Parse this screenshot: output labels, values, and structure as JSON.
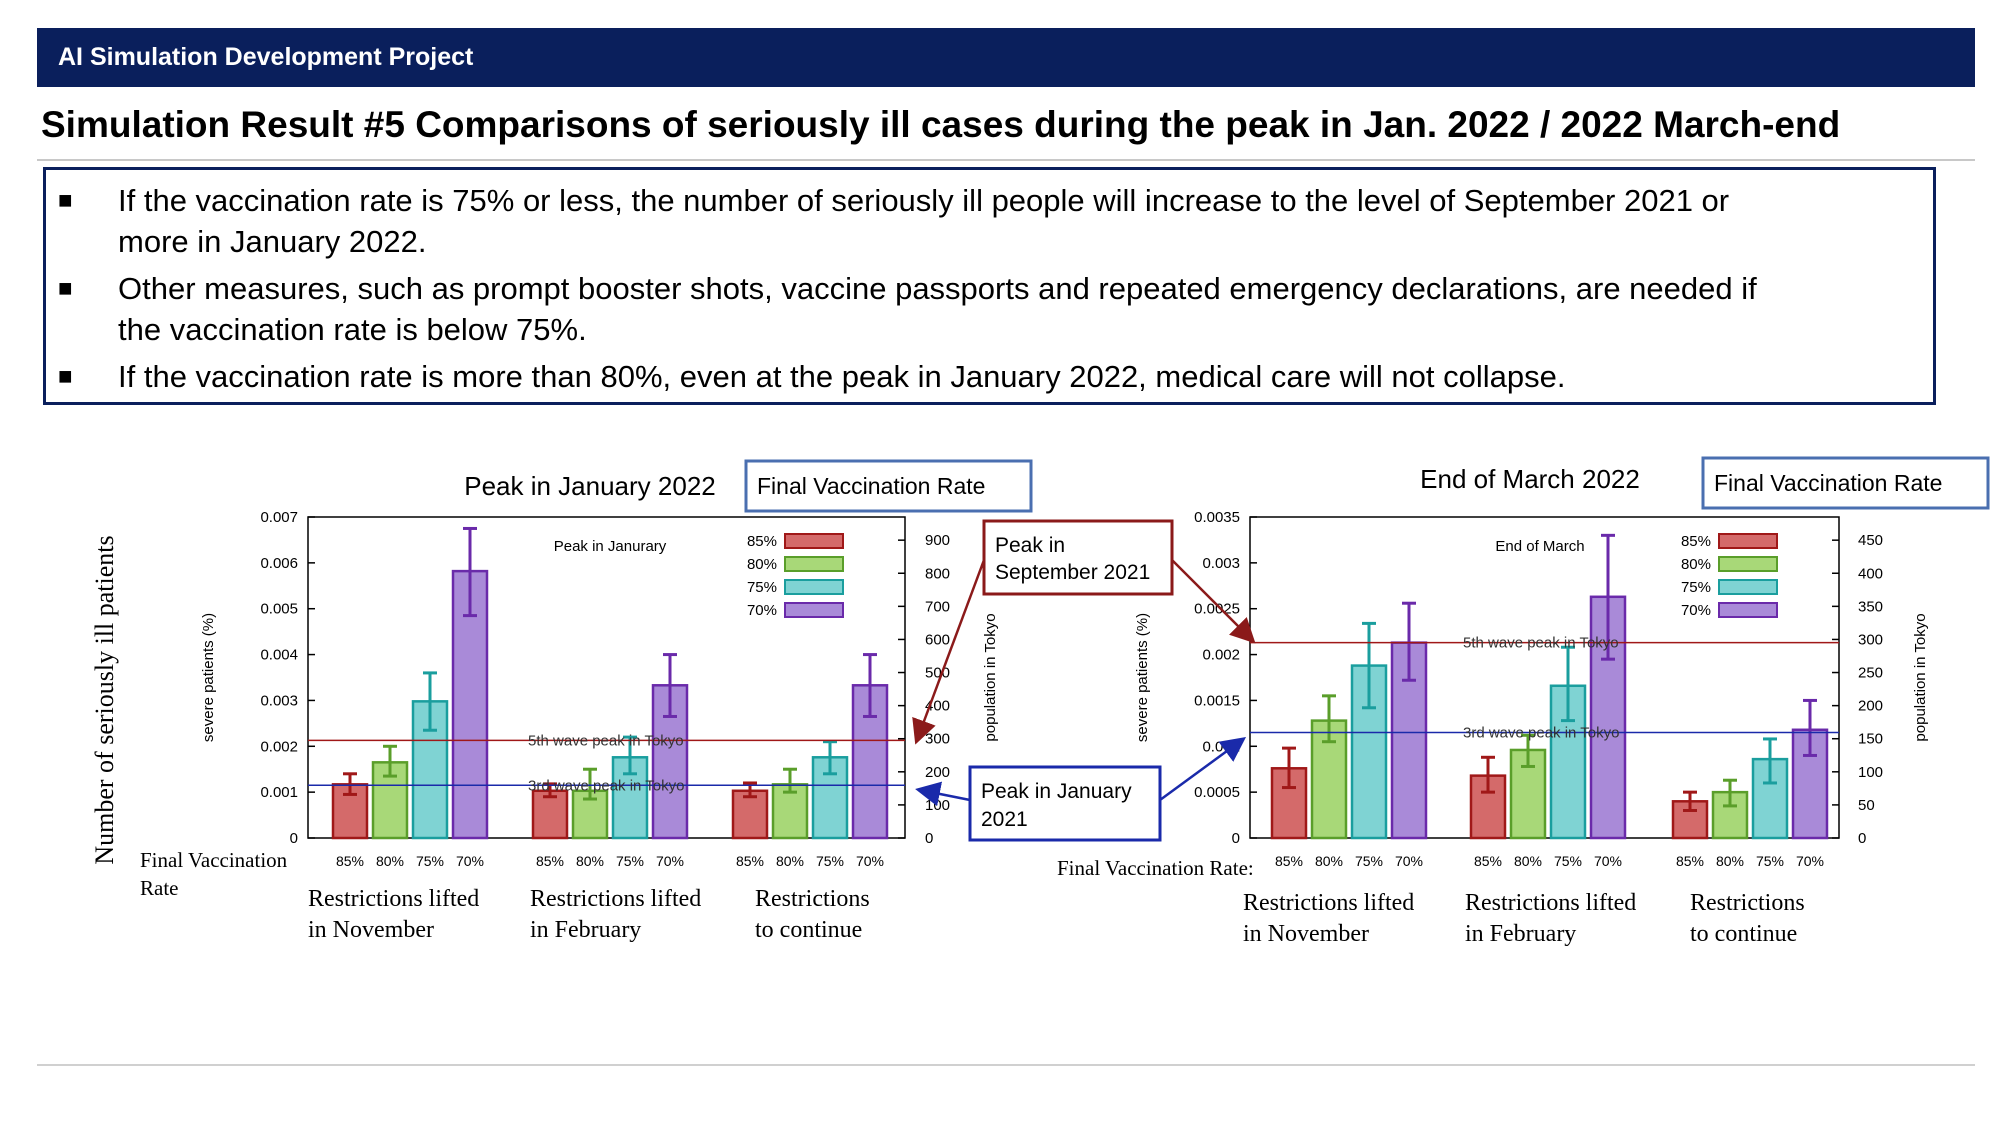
{
  "header": {
    "title": "AI Simulation Development Project"
  },
  "slide_title": "Simulation Result #5 Comparisons of seriously ill cases during the peak in Jan. 2022 / 2022 March-end",
  "bullets": [
    {
      "lines": [
        "If the vaccination rate is 75% or less, the number of seriously ill people will increase to the level of September 2021 or",
        "more in January 2022."
      ]
    },
    {
      "lines": [
        "Other measures, such as prompt booster shots, vaccine passports and repeated emergency declarations, are needed if",
        "the vaccination rate is below 75%."
      ]
    },
    {
      "lines": [
        "If the vaccination rate is more than 80%, even at the peak in January 2022, medical care will not collapse."
      ]
    }
  ],
  "outer_ylabel": "Number of seriously ill patients",
  "callouts": {
    "september": {
      "lines": [
        "Peak in",
        "September 2021"
      ],
      "color": "#8b1a1a"
    },
    "january": {
      "lines": [
        "Peak in January",
        "2021"
      ],
      "color": "#1a2aaa"
    }
  },
  "colors": {
    "85%": {
      "fill": "#d46a6a",
      "stroke": "#a01818"
    },
    "80%": {
      "fill": "#a8d878",
      "stroke": "#5a9e2a"
    },
    "75%": {
      "fill": "#7fd3d3",
      "stroke": "#1a9e9e"
    },
    "70%": {
      "fill": "#a98ad8",
      "stroke": "#6a2aaa"
    },
    "wave5": "#a01818",
    "wave3": "#1a2aaa",
    "legend_box": "#4a6fb0"
  },
  "chart_data": [
    {
      "type": "bar",
      "title": "Peak in January 2022",
      "legend_title": "Final Vaccination Rate",
      "inner_label": "Peak in Janurary",
      "ylabel": "severe patients (%)",
      "y2label": "population in Tokyo",
      "ylim": [
        0,
        0.007
      ],
      "yticks": [
        "0",
        "0.001",
        "0.002",
        "0.003",
        "0.004",
        "0.005",
        "0.006",
        "0.007"
      ],
      "y2lim": [
        0,
        970
      ],
      "y2ticks": [
        "0",
        "100",
        "200",
        "300",
        "400",
        "500",
        "600",
        "700",
        "800",
        "900"
      ],
      "rate_axis_label": [
        "Final Vaccination",
        "Rate"
      ],
      "groups": [
        {
          "label": [
            "Restrictions lifted",
            "in November"
          ]
        },
        {
          "label": [
            "Restrictions lifted",
            "in February"
          ]
        },
        {
          "label": [
            "Restrictions",
            "to continue"
          ]
        }
      ],
      "series": [
        {
          "name": "85%",
          "values": [
            0.00117,
            0.00103,
            0.00103
          ],
          "err_low": [
            0.00095,
            0.0009,
            0.0009
          ],
          "err_high": [
            0.0014,
            0.00118,
            0.0012
          ]
        },
        {
          "name": "80%",
          "values": [
            0.00165,
            0.00103,
            0.00117
          ],
          "err_low": [
            0.00135,
            0.00085,
            0.001
          ],
          "err_high": [
            0.002,
            0.0015,
            0.0015
          ]
        },
        {
          "name": "75%",
          "values": [
            0.00298,
            0.00176,
            0.00176
          ],
          "err_low": [
            0.00235,
            0.0014,
            0.0014
          ],
          "err_high": [
            0.0036,
            0.0022,
            0.0021
          ]
        },
        {
          "name": "70%",
          "values": [
            0.00582,
            0.00333,
            0.00333
          ],
          "err_low": [
            0.00485,
            0.00265,
            0.00265
          ],
          "err_high": [
            0.00675,
            0.004,
            0.004
          ]
        }
      ],
      "reference_lines": [
        {
          "label": "5th wave peak in Tokyo",
          "value": 0.00213,
          "color_key": "wave5"
        },
        {
          "label": "3rd wave peak in Tokyo",
          "value": 0.00115,
          "color_key": "wave3"
        }
      ]
    },
    {
      "type": "bar",
      "title": "End of March 2022",
      "legend_title": "Final Vaccination Rate",
      "inner_label": "End of March",
      "ylabel": "severe patients (%)",
      "y2label": "population in Tokyo",
      "ylim": [
        0,
        0.0035
      ],
      "yticks": [
        "0",
        "0.0005",
        "0.001",
        "0.0015",
        "0.002",
        "0.0025",
        "0.003",
        "0.0035"
      ],
      "y2lim": [
        0,
        485
      ],
      "y2ticks": [
        "0",
        "50",
        "100",
        "150",
        "200",
        "250",
        "300",
        "350",
        "400",
        "450"
      ],
      "rate_axis_label": [
        "Final Vaccination Rate:"
      ],
      "groups": [
        {
          "label": [
            "Restrictions lifted",
            "in November"
          ]
        },
        {
          "label": [
            "Restrictions lifted",
            "in February"
          ]
        },
        {
          "label": [
            "Restrictions",
            "to continue"
          ]
        }
      ],
      "series": [
        {
          "name": "85%",
          "values": [
            0.00076,
            0.00068,
            0.0004
          ],
          "err_low": [
            0.00055,
            0.0005,
            0.0003
          ],
          "err_high": [
            0.00098,
            0.00088,
            0.0005
          ]
        },
        {
          "name": "80%",
          "values": [
            0.00128,
            0.00096,
            0.0005
          ],
          "err_low": [
            0.00105,
            0.00078,
            0.00035
          ],
          "err_high": [
            0.00155,
            0.00112,
            0.00063
          ]
        },
        {
          "name": "75%",
          "values": [
            0.00188,
            0.00166,
            0.00086
          ],
          "err_low": [
            0.00142,
            0.00128,
            0.0006
          ],
          "err_high": [
            0.00234,
            0.00208,
            0.00108
          ]
        },
        {
          "name": "70%",
          "values": [
            0.00213,
            0.00263,
            0.00118
          ],
          "err_low": [
            0.00172,
            0.00195,
            0.0009
          ],
          "err_high": [
            0.00256,
            0.0033,
            0.0015
          ]
        }
      ],
      "reference_lines": [
        {
          "label": "5th wave peak in Tokyo",
          "value": 0.00213,
          "color_key": "wave5"
        },
        {
          "label": "3rd wave peak in Tokyo",
          "value": 0.00115,
          "color_key": "wave3"
        }
      ]
    }
  ]
}
